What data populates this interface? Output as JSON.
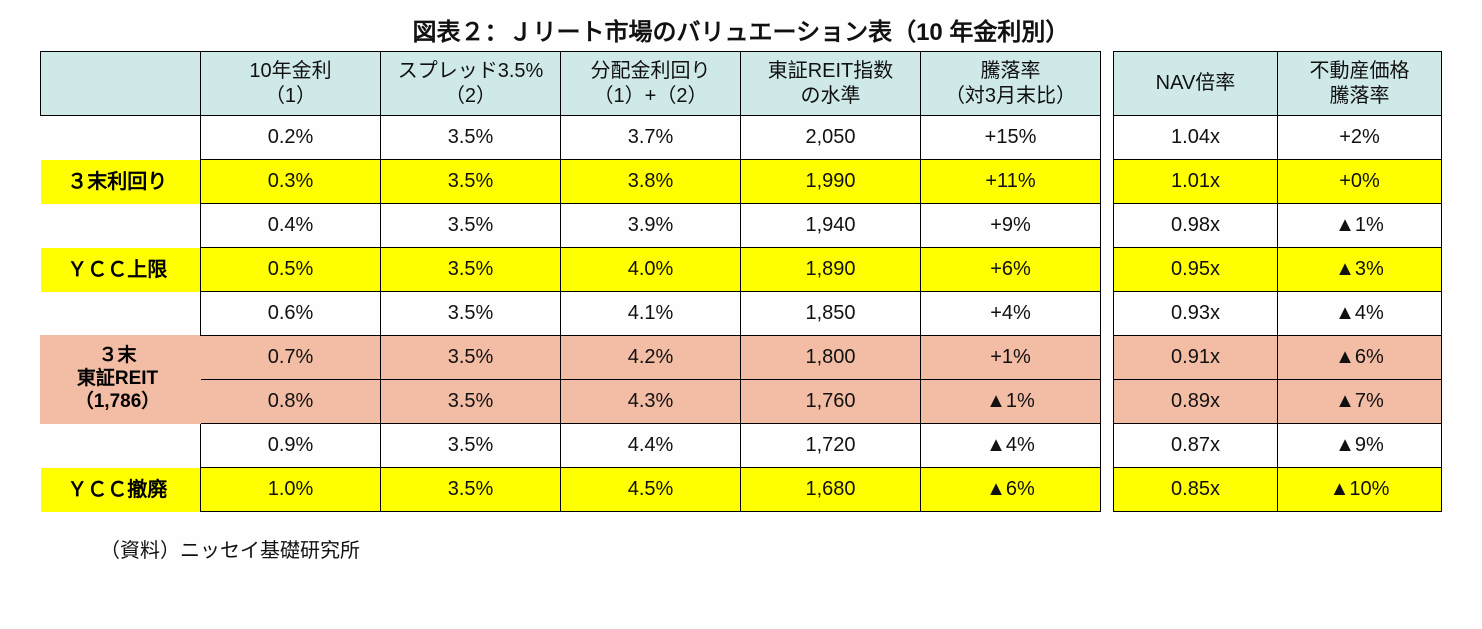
{
  "title": "図表２：Ｊリート市場のバリュエーション表（10 年金利別）",
  "source_label": "（資料）ニッセイ基礎研究所",
  "colors": {
    "header_bg": "#cfe9e9",
    "highlight_bg": "#ffff00",
    "peach_bg": "#f3bca4",
    "border": "#000000",
    "background": "#fefefe",
    "text": "#111111"
  },
  "font": {
    "title_size_pt": 18,
    "cell_size_pt": 15,
    "source_size_pt": 15
  },
  "headers_left": [
    "10年金利\n（1）",
    "スプレッド3.5%\n（2）",
    "分配金利回り\n（1）+（2）",
    "東証REIT指数\nの水準",
    "騰落率\n（対3月末比）"
  ],
  "headers_right": [
    "NAV倍率",
    "不動産価格\n騰落率"
  ],
  "rows": [
    {
      "label": "",
      "hl": false,
      "peach": false,
      "reit_span": 0,
      "left": [
        "0.2%",
        "3.5%",
        "3.7%",
        "2,050",
        "+15%"
      ],
      "right": [
        "1.04x",
        "+2%"
      ]
    },
    {
      "label": "３末利回り",
      "hl": true,
      "peach": false,
      "reit_span": 0,
      "left": [
        "0.3%",
        "3.5%",
        "3.8%",
        "1,990",
        "+11%"
      ],
      "right": [
        "1.01x",
        "+0%"
      ]
    },
    {
      "label": "",
      "hl": false,
      "peach": false,
      "reit_span": 0,
      "left": [
        "0.4%",
        "3.5%",
        "3.9%",
        "1,940",
        "+9%"
      ],
      "right": [
        "0.98x",
        "▲1%"
      ]
    },
    {
      "label": "ＹＣＣ上限",
      "hl": true,
      "peach": false,
      "reit_span": 0,
      "left": [
        "0.5%",
        "3.5%",
        "4.0%",
        "1,890",
        "+6%"
      ],
      "right": [
        "0.95x",
        "▲3%"
      ]
    },
    {
      "label": "",
      "hl": false,
      "peach": false,
      "reit_span": 0,
      "left": [
        "0.6%",
        "3.5%",
        "4.1%",
        "1,850",
        "+4%"
      ],
      "right": [
        "0.93x",
        "▲4%"
      ]
    },
    {
      "label": "３末\n東証REIT\n（1,786）",
      "hl": false,
      "peach": true,
      "reit_span": 2,
      "left": [
        "0.7%",
        "3.5%",
        "4.2%",
        "1,800",
        "+1%"
      ],
      "right": [
        "0.91x",
        "▲6%"
      ]
    },
    {
      "label": "",
      "hl": false,
      "peach": true,
      "reit_span": -1,
      "left": [
        "0.8%",
        "3.5%",
        "4.3%",
        "1,760",
        "▲1%"
      ],
      "right": [
        "0.89x",
        "▲7%"
      ]
    },
    {
      "label": "",
      "hl": false,
      "peach": false,
      "reit_span": 0,
      "left": [
        "0.9%",
        "3.5%",
        "4.4%",
        "1,720",
        "▲4%"
      ],
      "right": [
        "0.87x",
        "▲9%"
      ]
    },
    {
      "label": "ＹＣＣ撤廃",
      "hl": true,
      "peach": false,
      "reit_span": 0,
      "left": [
        "1.0%",
        "3.5%",
        "4.5%",
        "1,680",
        "▲6%"
      ],
      "right": [
        "0.85x",
        "▲10%"
      ]
    }
  ]
}
